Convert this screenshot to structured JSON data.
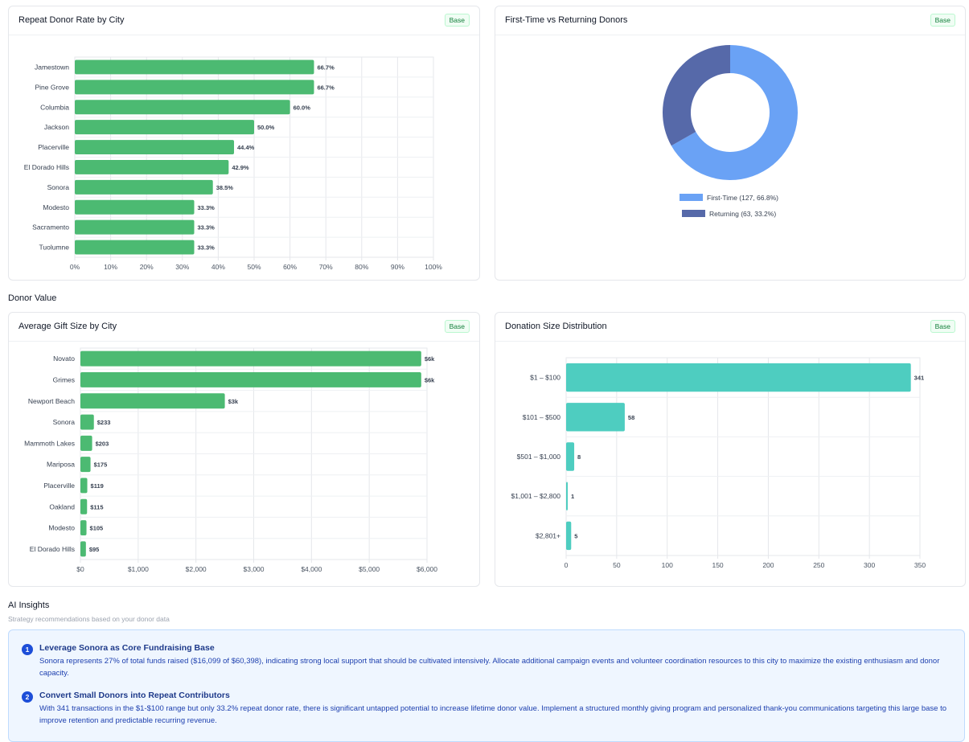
{
  "cards": {
    "repeat_rate": {
      "title": "Repeat Donor Rate by City",
      "badge": "Base"
    },
    "first_vs_returning": {
      "title": "First-Time vs Returning Donors",
      "badge": "Base"
    },
    "avg_gift": {
      "title": "Average Gift Size by City",
      "badge": "Base"
    },
    "size_dist": {
      "title": "Donation Size Distribution",
      "badge": "Base"
    }
  },
  "sections": {
    "donor_value": "Donor Value",
    "ai_insights": {
      "title": "AI Insights",
      "subtitle": "Strategy recommendations based on your donor data"
    }
  },
  "insights": [
    {
      "num": "1",
      "title": "Leverage Sonora as Core Fundraising Base",
      "body": "Sonora represents 27% of total funds raised ($16,099 of $60,398), indicating strong local support that should be cultivated intensively. Allocate additional campaign events and volunteer coordination resources to this city to maximize the existing enthusiasm and donor capacity."
    },
    {
      "num": "2",
      "title": "Convert Small Donors into Repeat Contributors",
      "body": "With 341 transactions in the $1-$100 range but only 33.2% repeat donor rate, there is significant untapped potential to increase lifetime donor value. Implement a structured monthly giving program and personalized thank-you communications targeting this large base to improve retention and predictable recurring revenue."
    }
  ],
  "colors": {
    "green_bar": "#4cba72",
    "teal_bar": "#4ecdc0",
    "first_time": "#6aa2f5",
    "returning": "#5669a9"
  },
  "chart_data": [
    {
      "type": "bar",
      "orientation": "horizontal",
      "categories": [
        "Jamestown",
        "Pine Grove",
        "Columbia",
        "Jackson",
        "Placerville",
        "El Dorado Hills",
        "Sonora",
        "Modesto",
        "Sacramento",
        "Tuolumne"
      ],
      "values": [
        66.7,
        66.7,
        60.0,
        50.0,
        44.4,
        42.9,
        38.5,
        33.3,
        33.3,
        33.3
      ],
      "labels": [
        "66.7%",
        "66.7%",
        "60.0%",
        "50.0%",
        "44.4%",
        "42.9%",
        "38.5%",
        "33.3%",
        "33.3%",
        "33.3%"
      ],
      "xlim": [
        0,
        100
      ],
      "xticks": [
        "0%",
        "10%",
        "20%",
        "30%",
        "40%",
        "50%",
        "60%",
        "70%",
        "80%",
        "90%",
        "100%"
      ],
      "grid": true
    },
    {
      "type": "pie",
      "donut": true,
      "series": [
        {
          "name": "First-Time",
          "value": 127,
          "percent": 66.8
        },
        {
          "name": "Returning",
          "value": 63,
          "percent": 33.2
        }
      ],
      "legend": [
        "First-Time (127, 66.8%)",
        "Returning (63, 33.2%)"
      ],
      "legend_placement": "bottom"
    },
    {
      "type": "bar",
      "orientation": "horizontal",
      "categories": [
        "Novato",
        "Grimes",
        "Newport Beach",
        "Sonora",
        "Mammoth Lakes",
        "Mariposa",
        "Placerville",
        "Oakland",
        "Modesto",
        "El Dorado Hills"
      ],
      "values": [
        5900,
        5900,
        2500,
        233,
        203,
        175,
        119,
        115,
        105,
        95
      ],
      "labels": [
        "$6k",
        "$6k",
        "$3k",
        "$233",
        "$203",
        "$175",
        "$119",
        "$115",
        "$105",
        "$95"
      ],
      "xlim": [
        0,
        6000
      ],
      "xticks": [
        "$0",
        "$1,000",
        "$2,000",
        "$3,000",
        "$4,000",
        "$5,000",
        "$6,000"
      ],
      "grid": true
    },
    {
      "type": "bar",
      "orientation": "horizontal",
      "categories": [
        "$1 – $100",
        "$101 – $500",
        "$501 – $1,000",
        "$1,001 – $2,800",
        "$2,801+"
      ],
      "values": [
        341,
        58,
        8,
        1,
        5
      ],
      "labels": [
        "341",
        "58",
        "8",
        "1",
        "5"
      ],
      "xlim": [
        0,
        350
      ],
      "xticks": [
        "0",
        "50",
        "100",
        "150",
        "200",
        "250",
        "300",
        "350"
      ],
      "grid": true
    }
  ]
}
